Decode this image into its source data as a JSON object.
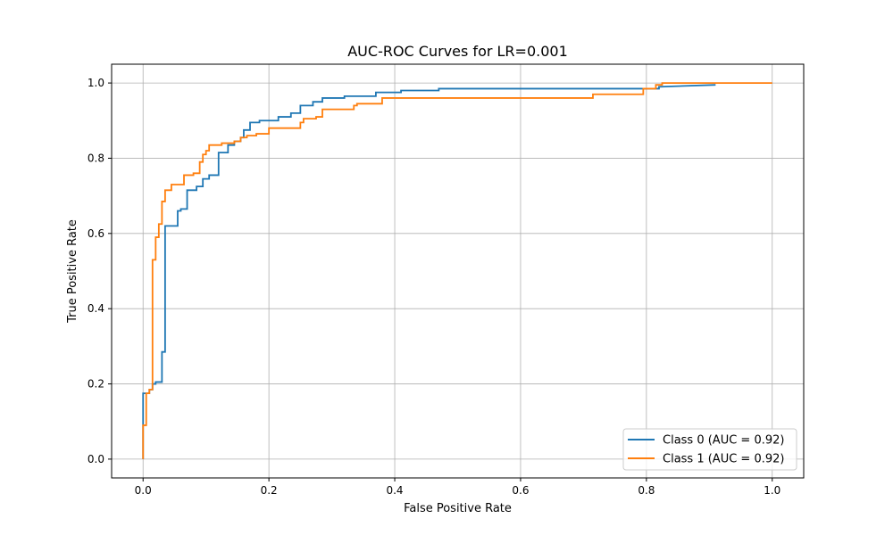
{
  "chart_data": {
    "type": "line",
    "title": "AUC-ROC Curves for LR=0.001",
    "xlabel": "False Positive Rate",
    "ylabel": "True Positive Rate",
    "xlim": [
      -0.05,
      1.05
    ],
    "ylim": [
      -0.05,
      1.05
    ],
    "xticks": [
      0.0,
      0.2,
      0.4,
      0.6,
      0.8,
      1.0
    ],
    "xtick_labels": [
      "0.0",
      "0.2",
      "0.4",
      "0.6",
      "0.8",
      "1.0"
    ],
    "yticks": [
      0.0,
      0.2,
      0.4,
      0.6,
      0.8,
      1.0
    ],
    "ytick_labels": [
      "0.0",
      "0.2",
      "0.4",
      "0.6",
      "0.8",
      "1.0"
    ],
    "grid": true,
    "legend_position": "lower right",
    "series": [
      {
        "name": "Class 0 (AUC = 0.92)",
        "color": "#1f77b4",
        "x": [
          0.0,
          0.0,
          0.0,
          0.01,
          0.01,
          0.015,
          0.015,
          0.02,
          0.02,
          0.03,
          0.03,
          0.035,
          0.035,
          0.04,
          0.04,
          0.055,
          0.055,
          0.06,
          0.06,
          0.07,
          0.07,
          0.085,
          0.085,
          0.095,
          0.095,
          0.105,
          0.105,
          0.12,
          0.12,
          0.135,
          0.135,
          0.145,
          0.145,
          0.155,
          0.155,
          0.16,
          0.16,
          0.17,
          0.17,
          0.185,
          0.185,
          0.215,
          0.215,
          0.235,
          0.235,
          0.25,
          0.25,
          0.27,
          0.27,
          0.285,
          0.285,
          0.32,
          0.32,
          0.37,
          0.37,
          0.41,
          0.41,
          0.47,
          0.47,
          0.8,
          0.8,
          0.82,
          0.82,
          0.91
        ],
        "y": [
          0.0,
          0.09,
          0.175,
          0.175,
          0.185,
          0.185,
          0.2,
          0.2,
          0.205,
          0.205,
          0.285,
          0.285,
          0.62,
          0.62,
          0.62,
          0.62,
          0.66,
          0.66,
          0.665,
          0.665,
          0.715,
          0.715,
          0.725,
          0.725,
          0.745,
          0.745,
          0.755,
          0.755,
          0.815,
          0.815,
          0.835,
          0.835,
          0.845,
          0.845,
          0.855,
          0.855,
          0.875,
          0.875,
          0.895,
          0.895,
          0.9,
          0.9,
          0.91,
          0.91,
          0.92,
          0.92,
          0.94,
          0.94,
          0.95,
          0.95,
          0.96,
          0.96,
          0.965,
          0.965,
          0.975,
          0.975,
          0.98,
          0.98,
          0.985,
          0.985,
          0.985,
          0.985,
          0.99,
          0.995
        ]
      },
      {
        "name": "Class 1 (AUC = 0.92)",
        "color": "#ff7f0e",
        "x": [
          0.0,
          0.0,
          0.005,
          0.005,
          0.01,
          0.01,
          0.015,
          0.015,
          0.02,
          0.02,
          0.025,
          0.025,
          0.03,
          0.03,
          0.035,
          0.035,
          0.04,
          0.04,
          0.045,
          0.045,
          0.055,
          0.055,
          0.065,
          0.065,
          0.08,
          0.08,
          0.09,
          0.09,
          0.095,
          0.095,
          0.1,
          0.1,
          0.105,
          0.105,
          0.125,
          0.125,
          0.145,
          0.145,
          0.155,
          0.155,
          0.165,
          0.165,
          0.18,
          0.18,
          0.2,
          0.2,
          0.25,
          0.25,
          0.255,
          0.255,
          0.275,
          0.275,
          0.285,
          0.285,
          0.335,
          0.335,
          0.34,
          0.34,
          0.38,
          0.38,
          0.715,
          0.715,
          0.795,
          0.795,
          0.815,
          0.815,
          0.825,
          0.825,
          1.0
        ],
        "y": [
          0.0,
          0.09,
          0.09,
          0.175,
          0.175,
          0.185,
          0.185,
          0.53,
          0.53,
          0.59,
          0.59,
          0.625,
          0.625,
          0.685,
          0.685,
          0.715,
          0.715,
          0.715,
          0.715,
          0.73,
          0.73,
          0.73,
          0.73,
          0.755,
          0.755,
          0.76,
          0.76,
          0.79,
          0.79,
          0.81,
          0.81,
          0.82,
          0.82,
          0.835,
          0.835,
          0.84,
          0.84,
          0.845,
          0.845,
          0.855,
          0.855,
          0.86,
          0.86,
          0.865,
          0.865,
          0.88,
          0.88,
          0.895,
          0.895,
          0.905,
          0.905,
          0.91,
          0.91,
          0.93,
          0.93,
          0.94,
          0.94,
          0.945,
          0.945,
          0.96,
          0.96,
          0.97,
          0.97,
          0.985,
          0.985,
          0.995,
          0.995,
          1.0,
          1.0
        ]
      }
    ]
  }
}
